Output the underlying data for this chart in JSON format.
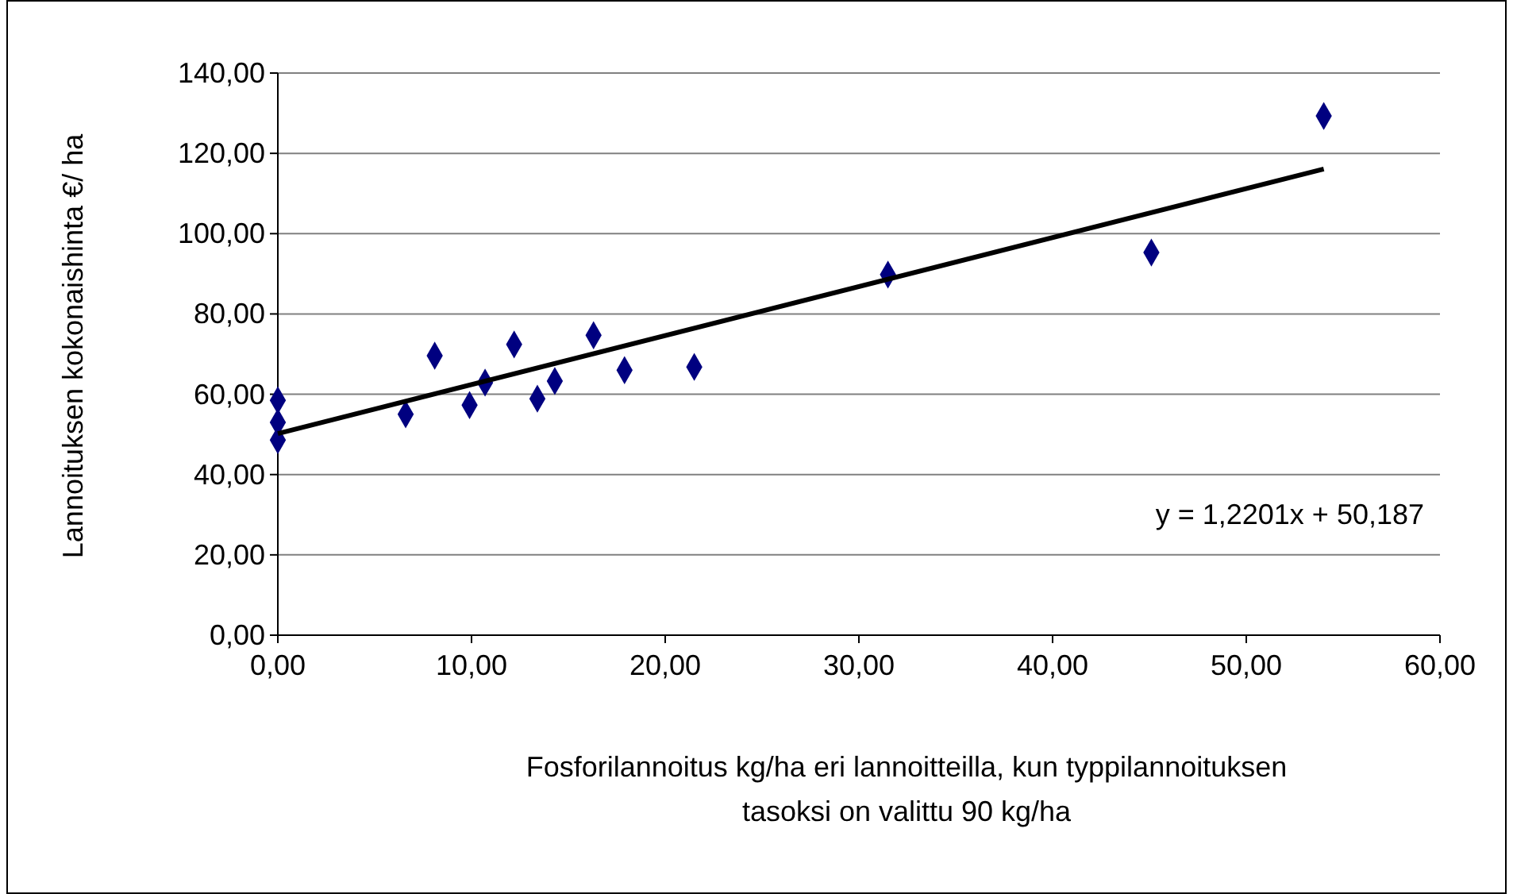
{
  "chart_data": {
    "type": "scatter",
    "xlabel": "Fosforilannoitus kg/ha eri lannoitteilla, kun typpilannoituksen tasoksi on valittu 90 kg/ha",
    "ylabel": "Lannoituksen kokonaishinta €/ ha",
    "xlim": [
      0,
      60
    ],
    "ylim": [
      0,
      140
    ],
    "xticks": [
      {
        "value": 0,
        "label": "0,00"
      },
      {
        "value": 10,
        "label": "10,00"
      },
      {
        "value": 20,
        "label": "20,00"
      },
      {
        "value": 30,
        "label": "30,00"
      },
      {
        "value": 40,
        "label": "40,00"
      },
      {
        "value": 50,
        "label": "50,00"
      },
      {
        "value": 60,
        "label": "60,00"
      }
    ],
    "yticks": [
      {
        "value": 0,
        "label": "0,00"
      },
      {
        "value": 20,
        "label": "20,00"
      },
      {
        "value": 40,
        "label": "40,00"
      },
      {
        "value": 60,
        "label": "60,00"
      },
      {
        "value": 80,
        "label": "80,00"
      },
      {
        "value": 100,
        "label": "100,00"
      },
      {
        "value": 120,
        "label": "120,00"
      },
      {
        "value": 140,
        "label": "140,00"
      }
    ],
    "grid": "y",
    "series": [
      {
        "marker": "diamond",
        "color": "#000080",
        "x": [
          0,
          0,
          0,
          6.6,
          8.1,
          9.9,
          10.7,
          12.2,
          13.4,
          14.3,
          16.3,
          17.9,
          21.5,
          31.5,
          45.1,
          54
        ],
        "values": [
          58.5,
          53,
          48.6,
          55,
          69.6,
          57.3,
          62.9,
          72.4,
          58.9,
          63.3,
          74.7,
          66,
          66.8,
          89.8,
          95.3,
          129.3
        ]
      },
      {
        "type": "line",
        "color": "#000000",
        "x": [
          0,
          54
        ],
        "values": [
          50.2,
          116.1
        ]
      }
    ],
    "annotations": [
      "y = 1,2201x + 50,187"
    ]
  }
}
